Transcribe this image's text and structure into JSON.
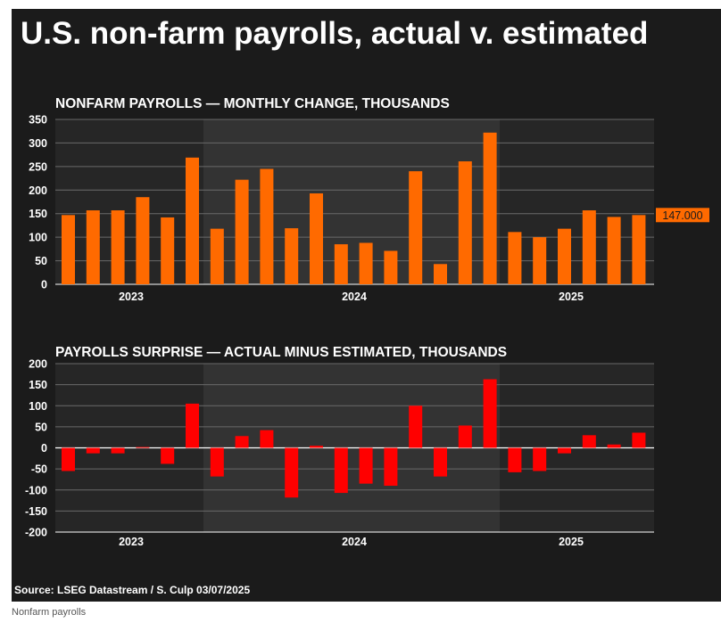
{
  "headline": "U.S. non-farm payrolls, actual v. estimated",
  "source": "Source: LSEG Datastream / S. Culp 03/07/2025",
  "caption": "Nonfarm payrolls",
  "colors": {
    "background": "#1b1b1b",
    "band_dark": "#262626",
    "band_light": "#333333",
    "bar_payrolls": "#ff6a00",
    "bar_surprise": "#ff0000",
    "gridline": "#6a6a6a",
    "zero_line": "#ffffff",
    "text": "#ffffff"
  },
  "chart_data": [
    {
      "type": "bar",
      "title": "NONFARM PAYROLLS — MONTHLY CHANGE, THOUSANDS",
      "ylim": [
        0,
        350
      ],
      "yticks": [
        0,
        50,
        100,
        150,
        200,
        250,
        300,
        350
      ],
      "year_labels": [
        "2023",
        "2024",
        "2025"
      ],
      "values": [
        147,
        157,
        157,
        185,
        142,
        269,
        118,
        222,
        245,
        119,
        193,
        85,
        88,
        71,
        240,
        43,
        261,
        322,
        111,
        100,
        118,
        157,
        143,
        147
      ],
      "last_value_label": "147.000",
      "grid": true
    },
    {
      "type": "bar",
      "title": "PAYROLLS SURPRISE — ACTUAL MINUS ESTIMATED, THOUSANDS",
      "ylim": [
        -200,
        200
      ],
      "yticks": [
        -200,
        -150,
        -100,
        -50,
        0,
        50,
        100,
        150,
        200
      ],
      "year_labels": [
        "2023",
        "2024",
        "2025"
      ],
      "values": [
        -55,
        -13,
        -13,
        2,
        -38,
        105,
        -68,
        28,
        42,
        -118,
        5,
        -107,
        -85,
        -90,
        100,
        -68,
        53,
        163,
        -58,
        -55,
        -13,
        30,
        8,
        36
      ],
      "grid": true
    }
  ]
}
